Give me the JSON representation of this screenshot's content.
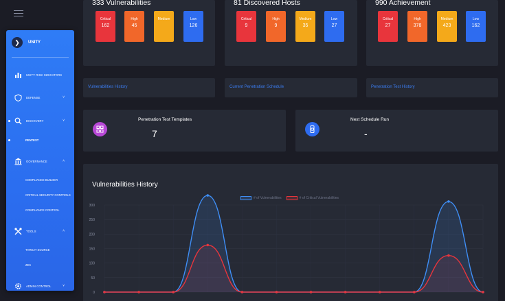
{
  "sidebar": {
    "brand": "UNITY",
    "items": [
      {
        "label": "UNITY RISK INDICATORS",
        "icon": "bar-chart-icon"
      },
      {
        "label": "DEFENSE",
        "icon": "shield-icon"
      },
      {
        "label": "DISCOVERY",
        "icon": "search-icon"
      },
      {
        "label": "PENTEST",
        "icon": "dot"
      },
      {
        "label": "GOVERNANCE",
        "icon": "bank-icon"
      },
      {
        "label": "COMPLIANCE BUILDER"
      },
      {
        "label": "CRITICAL SECURITY CONTROLS"
      },
      {
        "label": "COMPLIANCE CONTROL"
      },
      {
        "label": "TOOLS",
        "icon": "tools-icon"
      },
      {
        "label": "THREAT SOURCE"
      },
      {
        "label": "ZEK"
      },
      {
        "label": "ADMIN CONTROL",
        "icon": "gear-icon"
      }
    ]
  },
  "stats": [
    {
      "title": "333 Vulnerabilities",
      "badges": [
        {
          "label": "Critical",
          "value": "162",
          "color": "#e8353c"
        },
        {
          "label": "High",
          "value": "45",
          "color": "#f1672a"
        },
        {
          "label": "Medium",
          "value": "",
          "color": "#f4a91a"
        },
        {
          "label": "Low",
          "value": "126",
          "color": "#2e6cf0"
        }
      ]
    },
    {
      "title": "81 Discovered Hosts",
      "badges": [
        {
          "label": "Critical",
          "value": "9",
          "color": "#e8353c"
        },
        {
          "label": "High",
          "value": "9",
          "color": "#f1672a"
        },
        {
          "label": "Medium",
          "value": "35",
          "color": "#f4a91a"
        },
        {
          "label": "Low",
          "value": "27",
          "color": "#2e6cf0"
        }
      ]
    },
    {
      "title": "990 Achievement",
      "badges": [
        {
          "label": "Critical",
          "value": "27",
          "color": "#e8353c"
        },
        {
          "label": "High",
          "value": "378",
          "color": "#f1672a"
        },
        {
          "label": "Medium",
          "value": "423",
          "color": "#f4a91a"
        },
        {
          "label": "Low",
          "value": "162",
          "color": "#2e6cf0"
        }
      ]
    }
  ],
  "links": [
    "Vulnerabilities History",
    "Current Penetration Schedule",
    "Penetration Test History"
  ],
  "info": [
    {
      "title": "Penetration Test Templates",
      "value": "7",
      "icon": "template-icon",
      "color": "#b748d6"
    },
    {
      "title": "Next Schedule Run",
      "value": "-",
      "icon": "watch-icon",
      "color": "#2e6cf0"
    }
  ],
  "chart_data": {
    "type": "line",
    "title": "Vulnerabilities History",
    "ylim": [
      0,
      300
    ],
    "yticks": [
      0,
      50,
      100,
      150,
      200,
      250,
      300
    ],
    "x": [
      0,
      1,
      2,
      3,
      4,
      5,
      6,
      7,
      8,
      9,
      10,
      11
    ],
    "series": [
      {
        "name": "# of Vulnerabilities",
        "color": "#3f8ef5",
        "values": [
          0,
          0,
          0,
          333,
          0,
          0,
          0,
          0,
          0,
          0,
          312,
          0
        ]
      },
      {
        "name": "# of Critical Vulnerabilities",
        "color": "#e8353c",
        "values": [
          0,
          0,
          0,
          162,
          0,
          0,
          0,
          0,
          0,
          0,
          126,
          0
        ]
      }
    ],
    "grid": true,
    "legend": "top-center"
  }
}
